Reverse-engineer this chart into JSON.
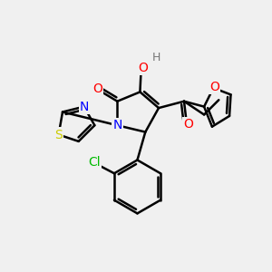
{
  "background_color": "#f0f0f0",
  "bond_color": "#000000",
  "bond_width": 1.8,
  "atom_colors": {
    "O": "#ff0000",
    "N": "#0000ff",
    "S": "#cccc00",
    "Cl": "#00bb00",
    "H": "#777777",
    "C": "#000000"
  },
  "font_size": 10
}
